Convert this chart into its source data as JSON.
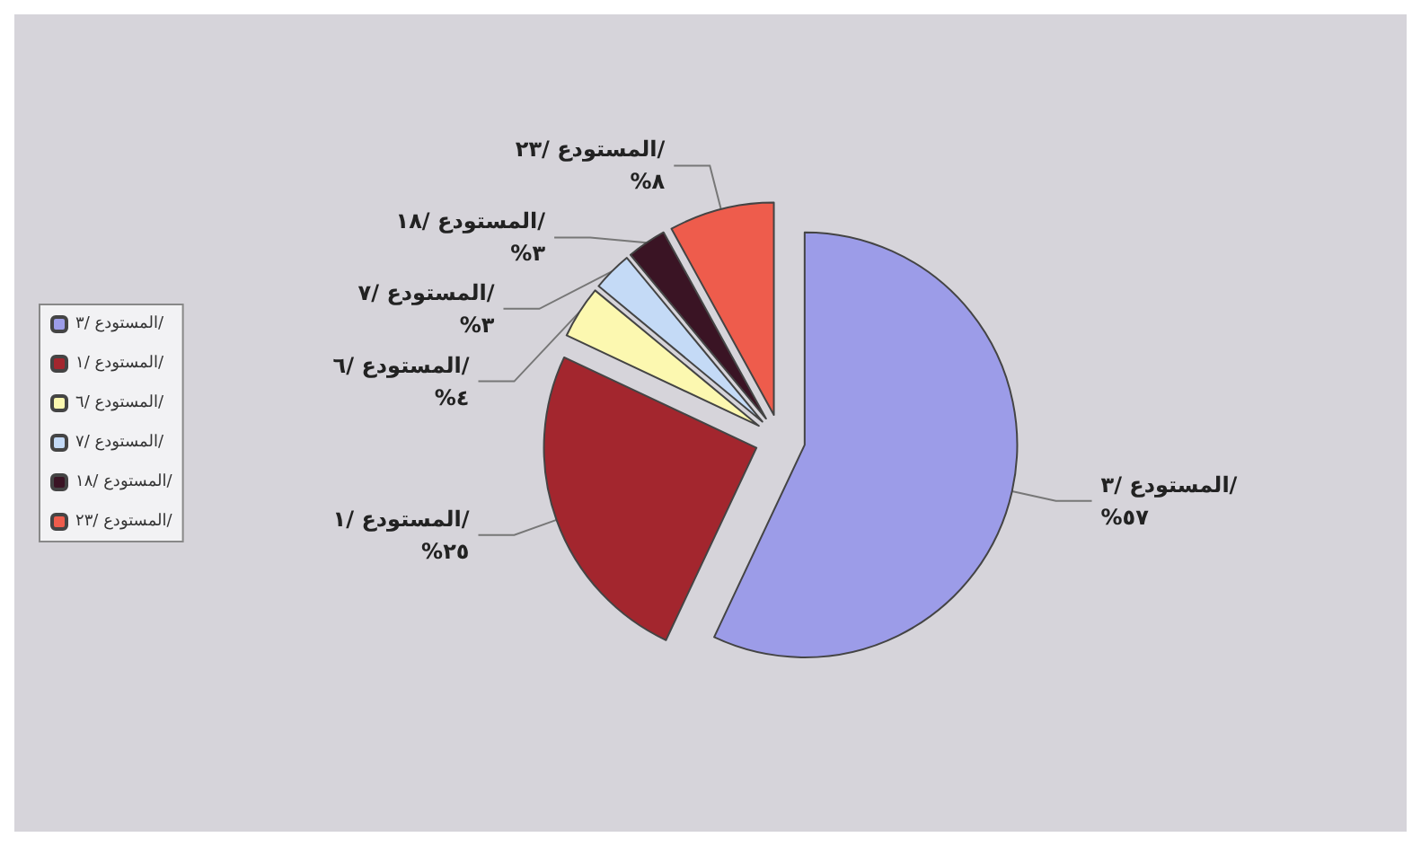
{
  "chart_data": {
    "type": "pie",
    "categories": [
      "المستودع /٣/",
      "المستودع /١/",
      "المستودع /٦/",
      "المستودع /٧/",
      "المستودع /١٨/",
      "المستودع /٢٣/"
    ],
    "values": [
      57,
      25,
      4,
      3,
      3,
      8
    ],
    "value_labels": [
      "%٥٧",
      "%٢٥",
      "%٤",
      "%٣",
      "%٣",
      "%٨"
    ],
    "colors": [
      "#9c9ce8",
      "#a3262e",
      "#fcf8b0",
      "#c4daf6",
      "#3a1424",
      "#ee5c4c"
    ],
    "legend": "left"
  }
}
